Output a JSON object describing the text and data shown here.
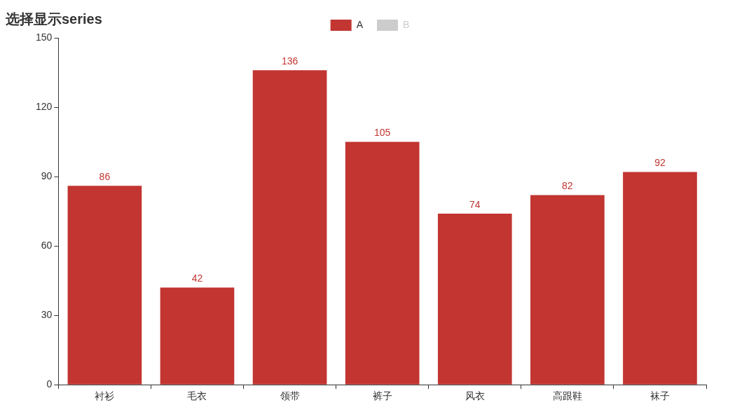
{
  "chart_data": {
    "type": "bar",
    "title": "选择显示series",
    "categories": [
      "衬衫",
      "毛衣",
      "领带",
      "裤子",
      "风衣",
      "高跟鞋",
      "袜子"
    ],
    "series": [
      {
        "name": "A",
        "color": "#c23531",
        "values": [
          86,
          42,
          136,
          105,
          74,
          82,
          92
        ]
      },
      {
        "name": "B",
        "color": "#cccccc",
        "values": [
          null,
          null,
          null,
          null,
          null,
          null,
          null
        ]
      }
    ],
    "ylim": [
      0,
      150
    ],
    "yticks": [
      0,
      30,
      60,
      90,
      120,
      150
    ],
    "grid": false,
    "legend": "top",
    "data_labels": true
  }
}
